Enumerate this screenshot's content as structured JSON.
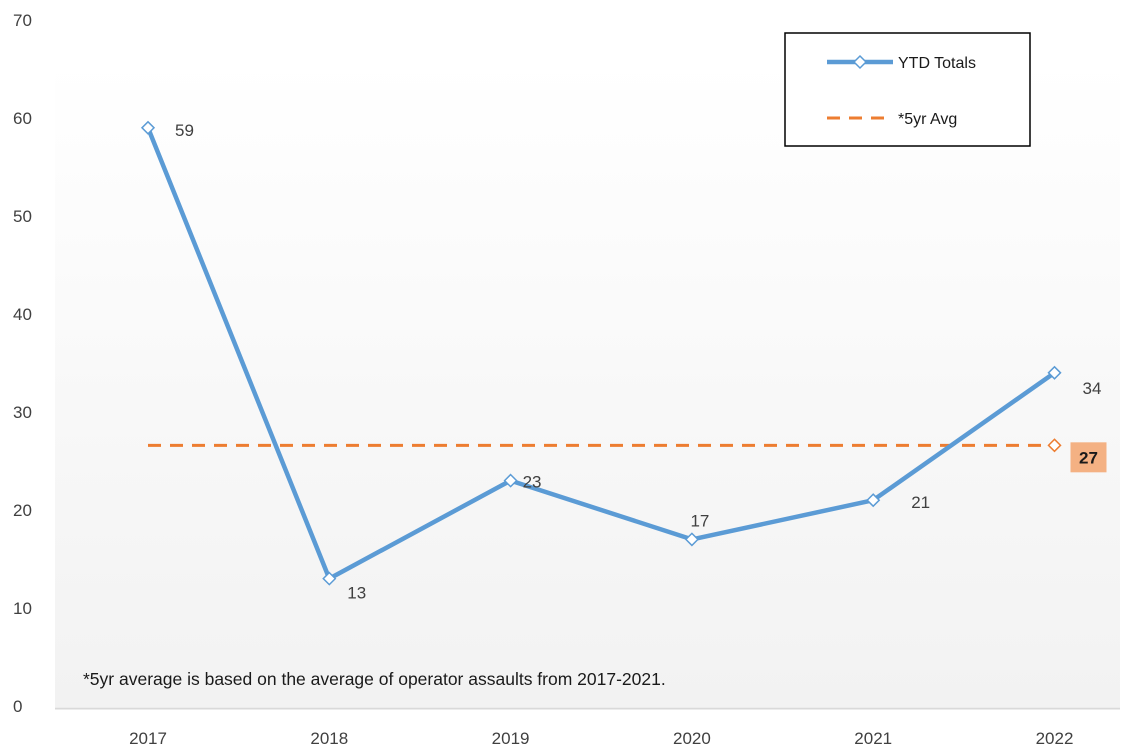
{
  "chart_data": {
    "type": "line",
    "categories": [
      "2017",
      "2018",
      "2019",
      "2020",
      "2021",
      "2022"
    ],
    "ylim": [
      0,
      70
    ],
    "yticks": [
      0,
      10,
      20,
      30,
      40,
      50,
      60,
      70
    ],
    "grid": false,
    "legend_position": "top-right",
    "series": [
      {
        "name": "YTD Totals",
        "values": [
          59,
          13,
          23,
          17,
          21,
          34
        ],
        "color": "#5B9BD5",
        "line_style": "solid",
        "marker": "diamond",
        "data_labels": [
          "59",
          "13",
          "23",
          "17",
          "21",
          "34"
        ]
      },
      {
        "name": "*5yr Avg",
        "values": [
          26.6,
          26.6,
          26.6,
          26.6,
          26.6,
          26.6
        ],
        "color": "#ED7D31",
        "line_style": "dashed",
        "end_label": "27"
      }
    ],
    "annotation": "*5yr average is based on the average of operator assaults from 2017-2021."
  }
}
